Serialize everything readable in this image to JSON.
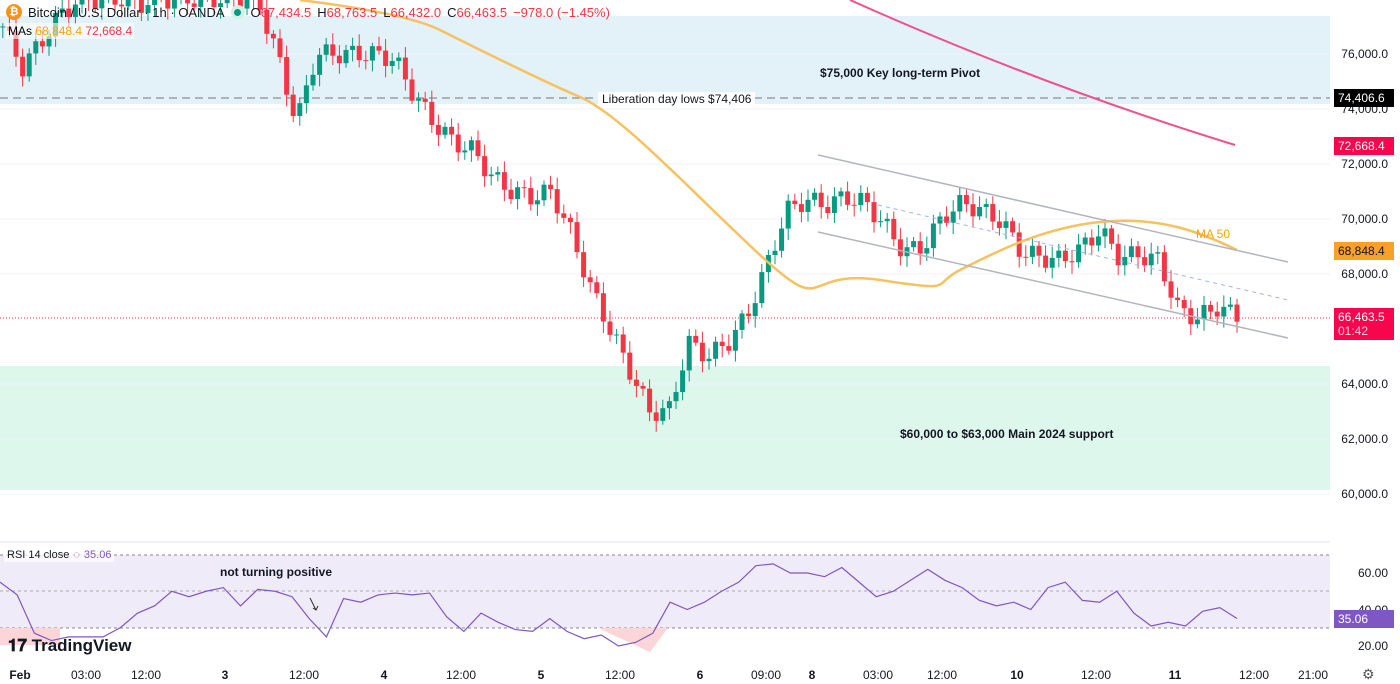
{
  "header": {
    "symbol": "Bitcoin / U.S. Dollar · 1h · OANDA",
    "open_label": "O",
    "open": "67,434.5",
    "high_label": "H",
    "high": "68,763.5",
    "low_label": "L",
    "low": "66,432.0",
    "close_label": "C",
    "close": "66,463.5",
    "change": "−978.0 (−1.45%)"
  },
  "mas": {
    "label": "MAs",
    "ma50": "68,848.4",
    "ma200": "72,668.4"
  },
  "rsi": {
    "label": "RSI 14 close",
    "value": "35.06"
  },
  "annotations": {
    "pivot": "$75,000 Key long-term Pivot",
    "liberation": "Liberation day lows $74,406",
    "support": "$60,000 to $63,000 Main 2024 support",
    "ma50": "MA 50",
    "rsi_note": "not turning positive"
  },
  "tags": {
    "liberation": "74,406.6",
    "ma200": "72,668.4",
    "ma50": "68,848.4",
    "last": "66,463.5",
    "countdown": "01:42",
    "rsi": "35.06"
  },
  "logo": "TradingView",
  "colors": {
    "up": "#089981",
    "down": "#f23645",
    "ma50": "#f7c15f",
    "ma200": "#f0508c",
    "rsi": "#7e57c2",
    "blue_zone": "#e3f1f8",
    "green_zone": "#ddf7ec"
  },
  "chart_data": {
    "type": "candlestick",
    "price_axis": {
      "ticks": [
        "76,000.0",
        "74,000.0",
        "72,000.0",
        "70,000.0",
        "68,000.0",
        "64,000.0",
        "62,000.0",
        "60,000.0"
      ],
      "range": [
        59000,
        77500
      ]
    },
    "time_axis": [
      "Feb",
      "03:00",
      "12:00",
      "3",
      "12:00",
      "4",
      "12:00",
      "5",
      "12:00",
      "6",
      "09:00",
      "8",
      "03:00",
      "12:00",
      "10",
      "12:00",
      "11",
      "12:00",
      "21:00"
    ],
    "close_series": [
      77000,
      75500,
      76500,
      77500,
      78000,
      78000,
      78000,
      77800,
      78000,
      78000,
      78000,
      78000,
      78000,
      78000,
      76000,
      73500,
      76000,
      76000,
      76000,
      76000,
      75800,
      74500,
      73500,
      72800,
      72500,
      71500,
      71000,
      70800,
      71000,
      69500,
      67500,
      66000,
      64500,
      63000,
      63000,
      65500,
      65000,
      65500,
      66500,
      68300,
      70300,
      70700,
      70500,
      70800,
      70600,
      69800,
      68800,
      69000,
      70100,
      70600,
      70300,
      69900,
      68800,
      68600,
      68500,
      68900,
      69600,
      68600,
      68700,
      68500,
      66700,
      66400,
      66800,
      66463.5
    ],
    "zones": [
      {
        "label": "$75,000 Key long-term Pivot",
        "from": 74200,
        "to": 77200
      },
      {
        "label": "$60,000 to $63,000 Main 2024 support",
        "from": 60100,
        "to": 63650
      }
    ],
    "levels": [
      {
        "label": "Liberation day lows $74,406",
        "value": 74406.6
      }
    ],
    "rsi_axis": {
      "ticks": [
        "60.00",
        "40.00",
        "20.00"
      ],
      "bands": [
        30,
        50,
        70
      ]
    },
    "rsi_series": [
      55,
      48,
      27,
      23,
      25,
      25,
      25,
      30,
      38,
      42,
      50,
      47,
      50,
      52,
      42,
      51,
      50,
      47,
      35,
      25,
      46,
      44,
      48,
      49,
      48,
      49,
      36,
      28,
      38,
      33,
      29,
      28,
      35,
      28,
      24,
      26,
      20,
      22,
      27,
      44,
      40,
      44,
      50,
      55,
      64,
      65,
      60,
      60,
      58,
      63,
      55,
      47,
      50,
      56,
      62,
      56,
      52,
      45,
      42,
      44,
      40,
      52,
      55,
      45,
      44,
      50,
      38,
      31,
      33,
      31,
      39,
      41,
      35.06
    ]
  }
}
